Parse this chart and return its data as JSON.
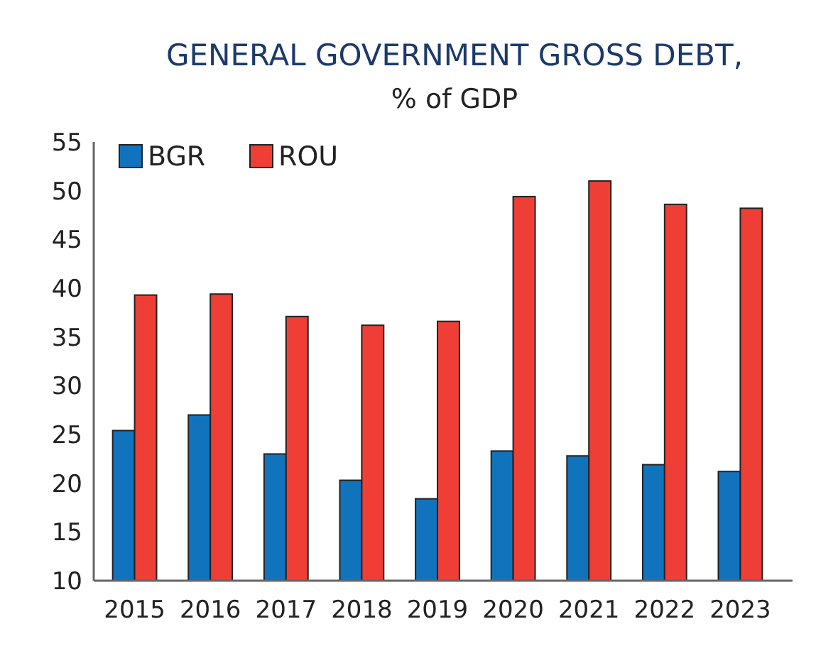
{
  "chart_data": {
    "type": "bar",
    "title": "GENERAL GOVERNMENT GROSS DEBT,",
    "subtitle": "% of GDP",
    "categories": [
      "2015",
      "2016",
      "2017",
      "2018",
      "2019",
      "2020",
      "2021",
      "2022",
      "2023"
    ],
    "series": [
      {
        "name": "BGR",
        "color": "#1273bd",
        "values": [
          25.4,
          27.0,
          23.0,
          20.3,
          18.4,
          23.3,
          22.8,
          21.9,
          21.2
        ]
      },
      {
        "name": "ROU",
        "color": "#ee3e36",
        "values": [
          39.3,
          39.4,
          37.1,
          36.2,
          36.6,
          49.4,
          51.0,
          48.6,
          48.2
        ]
      }
    ],
    "ylim": [
      10,
      55
    ],
    "yticks": [
      10,
      15,
      20,
      25,
      30,
      35,
      40,
      45,
      50,
      55
    ],
    "grid": false,
    "legend": "top left"
  }
}
